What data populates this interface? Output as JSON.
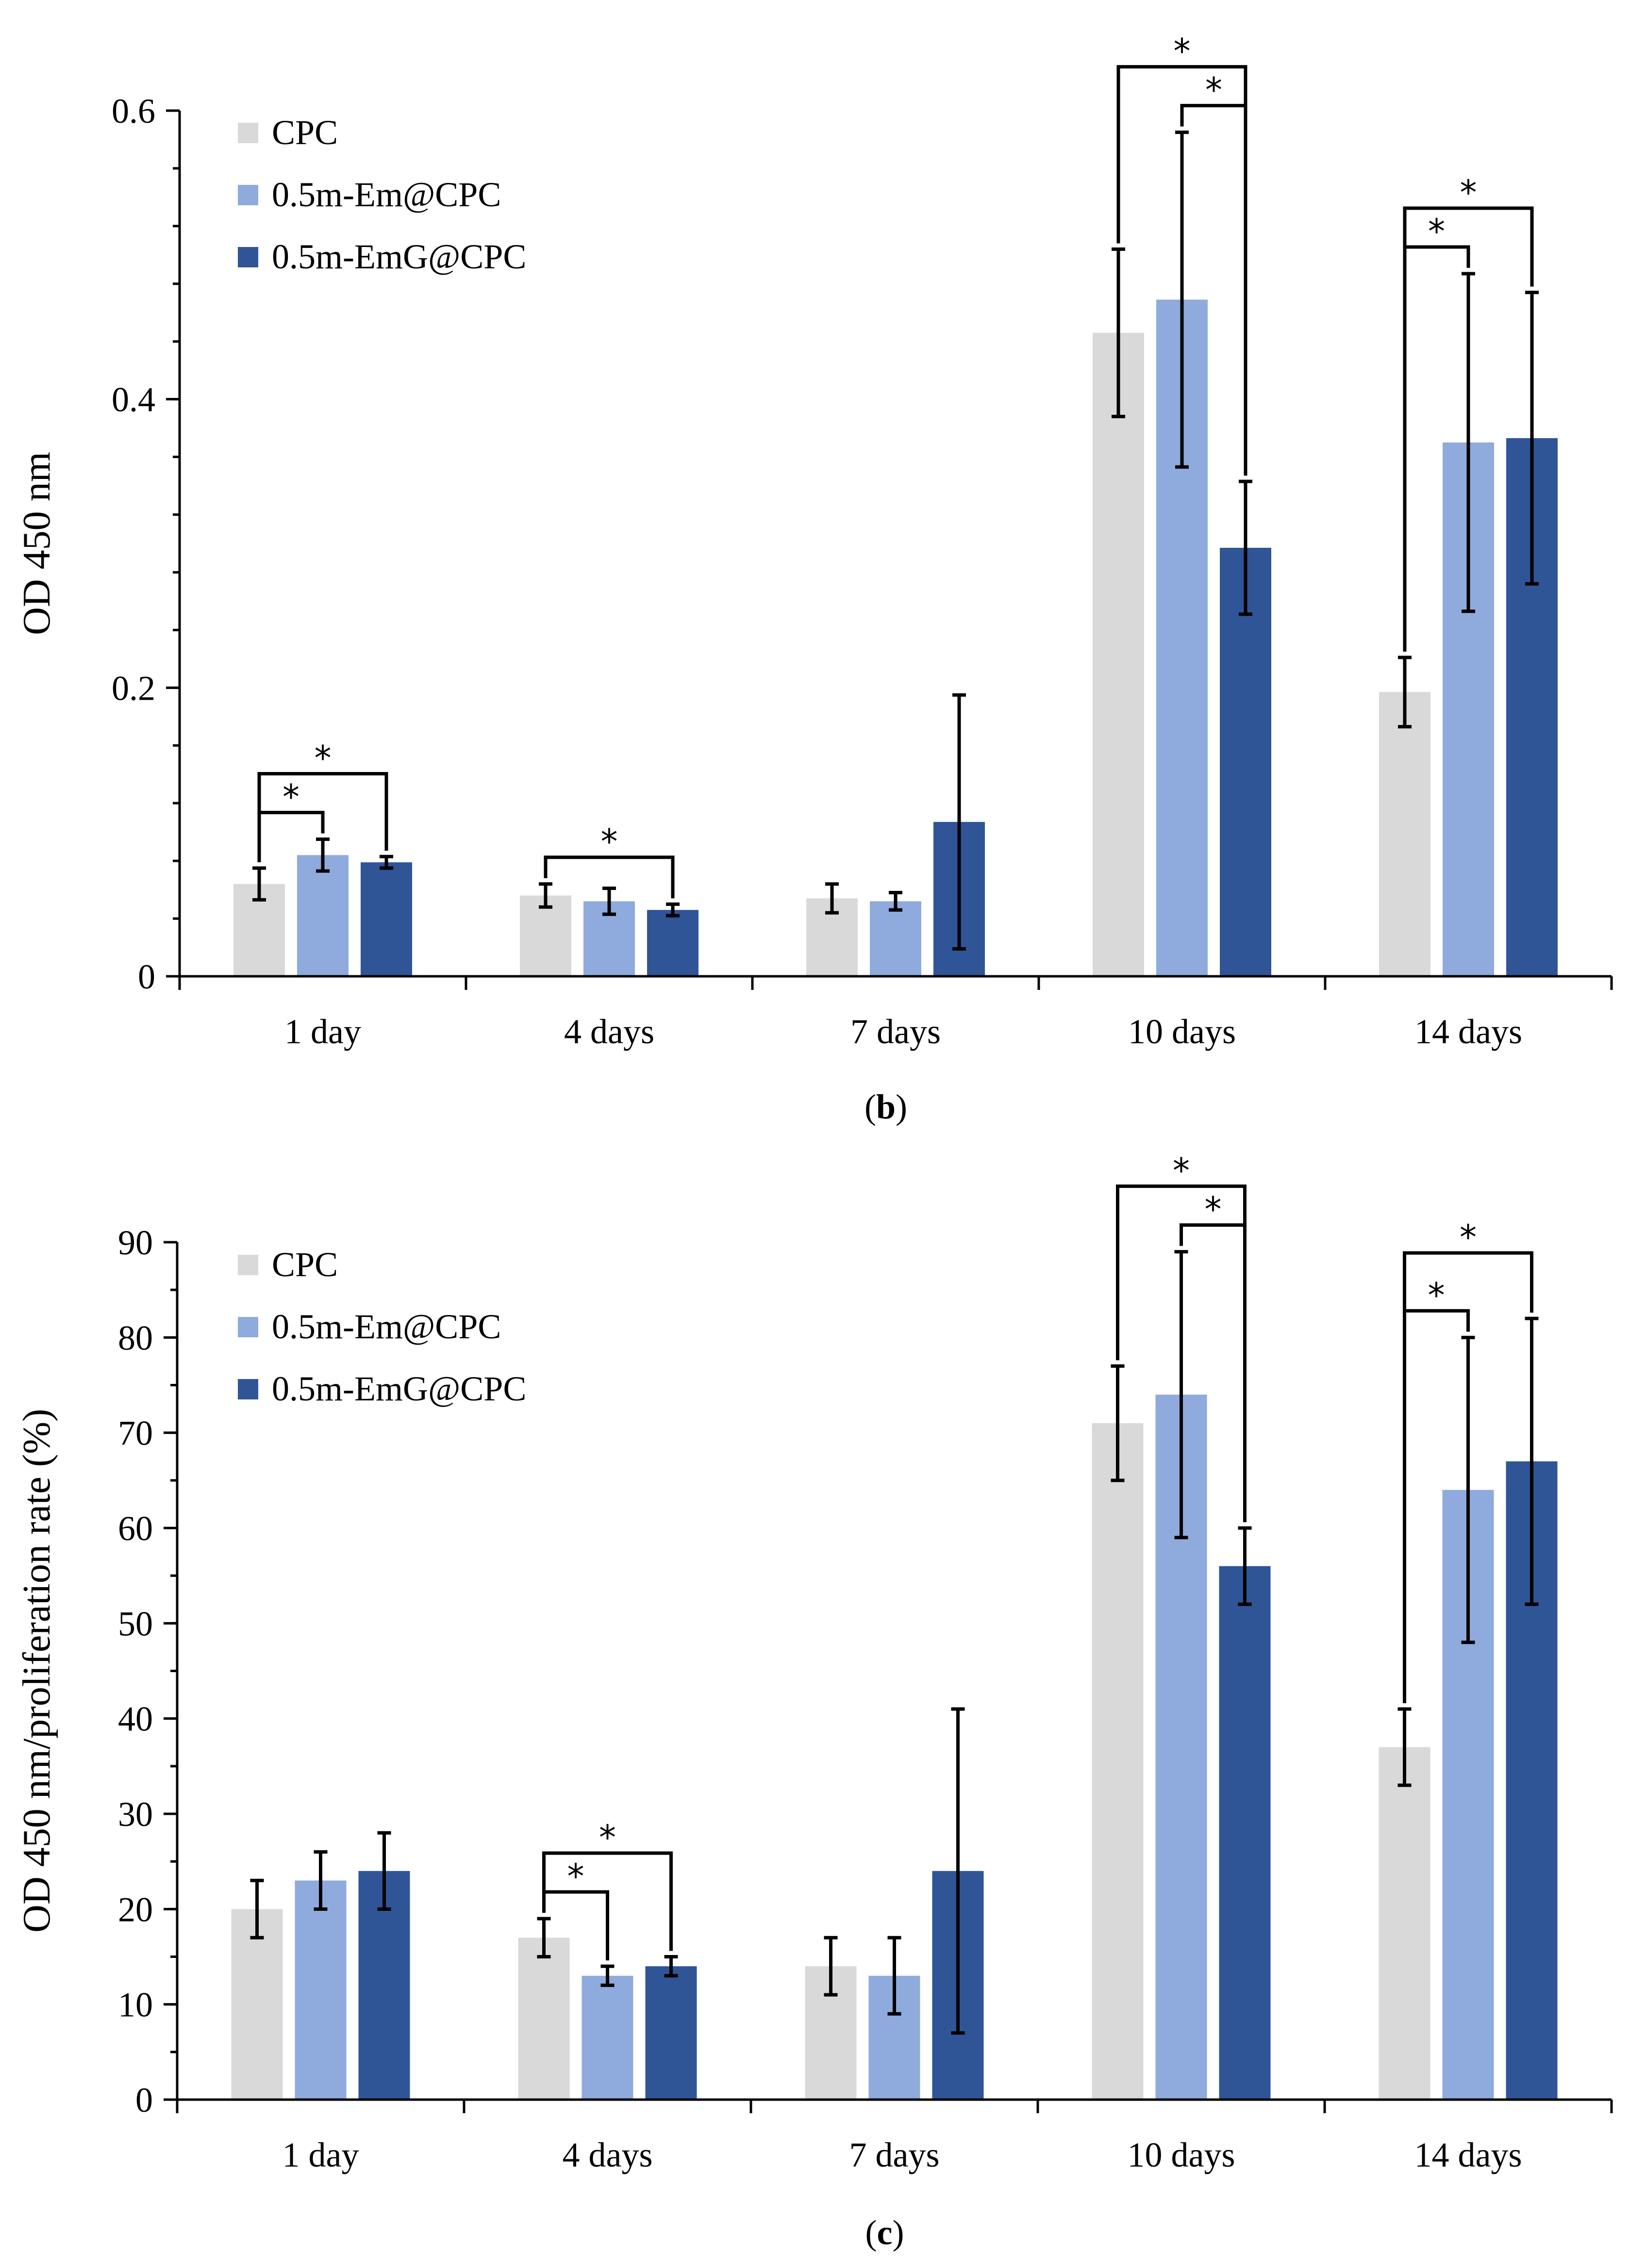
{
  "colors": {
    "CPC": "#d9d9d9",
    "0.5m-Em@CPC": "#8faadc",
    "0.5m-EmG@CPC": "#2f5597",
    "axis": "#000000"
  },
  "chart_data": [
    {
      "type": "bar",
      "panel_label": "b",
      "ylabel": "OD 450 nm",
      "ylim": [
        0,
        0.6
      ],
      "yticks": [
        0,
        0.2,
        0.4,
        0.6
      ],
      "ytick_labels": [
        "0",
        "0.2",
        "0.4",
        "0.6"
      ],
      "y_minor_step": 0.04,
      "categories": [
        "1 day",
        "4 days",
        "7 days",
        "10 days",
        "14 days"
      ],
      "legend_position": "top-left",
      "grid": false,
      "series": [
        {
          "name": "CPC",
          "values": [
            0.064,
            0.056,
            0.054,
            0.446,
            0.197
          ],
          "errors": [
            0.011,
            0.008,
            0.01,
            0.058,
            0.024
          ]
        },
        {
          "name": "0.5m-Em@CPC",
          "values": [
            0.084,
            0.052,
            0.052,
            0.469,
            0.37
          ],
          "errors": [
            0.011,
            0.009,
            0.006,
            0.116,
            0.117
          ]
        },
        {
          "name": "0.5m-EmG@CPC",
          "values": [
            0.079,
            0.046,
            0.107,
            0.297,
            0.373
          ],
          "errors": [
            0.004,
            0.004,
            0.088,
            0.046,
            0.101
          ]
        }
      ],
      "significance": [
        {
          "category": 0,
          "from": 0,
          "to": 1,
          "level": 0,
          "label": "*"
        },
        {
          "category": 0,
          "from": 0,
          "to": 2,
          "level": 1,
          "label": "*"
        },
        {
          "category": 1,
          "from": 0,
          "to": 2,
          "level": 0,
          "label": "*"
        },
        {
          "category": 3,
          "from": 1,
          "to": 2,
          "level": 0,
          "label": "*"
        },
        {
          "category": 3,
          "from": 0,
          "to": 2,
          "level": 1,
          "label": "*"
        },
        {
          "category": 4,
          "from": 0,
          "to": 1,
          "level": 0,
          "label": "*"
        },
        {
          "category": 4,
          "from": 0,
          "to": 2,
          "level": 1,
          "label": "*"
        }
      ]
    },
    {
      "type": "bar",
      "panel_label": "c",
      "ylabel": "OD 450 nm/proliferation rate (%)",
      "ylim": [
        0,
        90
      ],
      "yticks": [
        0,
        10,
        20,
        30,
        40,
        50,
        60,
        70,
        80,
        90
      ],
      "ytick_labels": [
        "0",
        "10",
        "20",
        "30",
        "40",
        "50",
        "60",
        "70",
        "80",
        "90"
      ],
      "y_minor_step": 5,
      "categories": [
        "1 day",
        "4 days",
        "7 days",
        "10 days",
        "14 days"
      ],
      "legend_position": "top-left",
      "grid": false,
      "series": [
        {
          "name": "CPC",
          "values": [
            20,
            17,
            14,
            71,
            37
          ],
          "errors": [
            3,
            2,
            3,
            6,
            4
          ]
        },
        {
          "name": "0.5m-Em@CPC",
          "values": [
            23,
            13,
            13,
            74,
            64
          ],
          "errors": [
            3,
            1,
            4,
            15,
            16
          ]
        },
        {
          "name": "0.5m-EmG@CPC",
          "values": [
            24,
            14,
            24,
            56,
            67
          ],
          "errors": [
            4,
            1,
            17,
            4,
            15
          ]
        }
      ],
      "significance": [
        {
          "category": 1,
          "from": 0,
          "to": 1,
          "level": 0,
          "label": "*"
        },
        {
          "category": 1,
          "from": 0,
          "to": 2,
          "level": 1,
          "label": "*"
        },
        {
          "category": 3,
          "from": 1,
          "to": 2,
          "level": 0,
          "label": "*"
        },
        {
          "category": 3,
          "from": 0,
          "to": 2,
          "level": 1,
          "label": "*"
        },
        {
          "category": 4,
          "from": 0,
          "to": 1,
          "level": 0,
          "label": "*"
        },
        {
          "category": 4,
          "from": 0,
          "to": 2,
          "level": 1,
          "label": "*"
        }
      ]
    }
  ]
}
